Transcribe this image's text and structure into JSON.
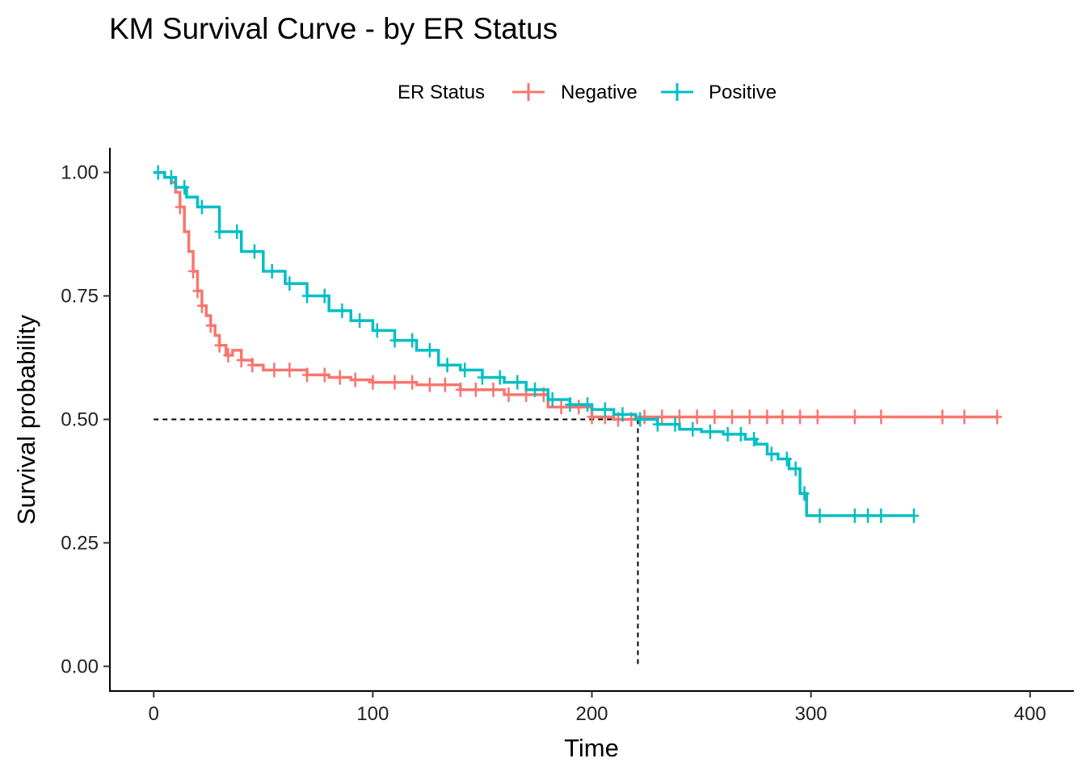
{
  "chart_data": {
    "type": "line",
    "subtype": "kaplan-meier step curve with censor marks",
    "title": "KM Survival Curve - by ER Status",
    "xlabel": "Time",
    "ylabel": "Survival probability",
    "xlim": [
      -20,
      420
    ],
    "ylim": [
      -0.05,
      1.05
    ],
    "xticks": [
      0,
      100,
      200,
      300,
      400
    ],
    "xtick_labels": [
      "0",
      "100",
      "200",
      "300",
      "400"
    ],
    "yticks": [
      0,
      0.25,
      0.5,
      0.75,
      1.0
    ],
    "ytick_labels": [
      "0.00",
      "0.25",
      "0.50",
      "0.75",
      "1.00"
    ],
    "grid": false,
    "legend": {
      "title": "ER Status",
      "placement": "top",
      "entries": [
        "Negative",
        "Positive"
      ]
    },
    "median_line": {
      "y": 0.5,
      "x": 221
    },
    "series": [
      {
        "name": "Negative",
        "color": "#F8766D",
        "x": [
          0,
          5,
          8,
          10,
          12,
          14,
          16,
          18,
          20,
          22,
          24,
          26,
          28,
          30,
          33,
          36,
          40,
          45,
          50,
          60,
          70,
          80,
          90,
          100,
          120,
          140,
          160,
          180,
          200,
          210,
          220,
          240,
          300,
          385
        ],
        "y": [
          1.0,
          0.99,
          0.98,
          0.96,
          0.93,
          0.88,
          0.84,
          0.8,
          0.76,
          0.73,
          0.71,
          0.69,
          0.67,
          0.65,
          0.63,
          0.64,
          0.62,
          0.61,
          0.6,
          0.6,
          0.59,
          0.585,
          0.58,
          0.575,
          0.57,
          0.56,
          0.55,
          0.525,
          0.505,
          0.5,
          0.505,
          0.505,
          0.505,
          0.505
        ],
        "censor_x": [
          12,
          18,
          20,
          22,
          26,
          30,
          34,
          40,
          45,
          55,
          62,
          70,
          78,
          85,
          92,
          100,
          110,
          118,
          126,
          133,
          140,
          147,
          155,
          162,
          170,
          178,
          186,
          194,
          200,
          206,
          212,
          218,
          224,
          232,
          240,
          248,
          256,
          264,
          272,
          280,
          287,
          295,
          303,
          320,
          332,
          360,
          370,
          385
        ]
      },
      {
        "name": "Positive",
        "color": "#00BFC4",
        "x": [
          0,
          5,
          10,
          15,
          20,
          30,
          40,
          50,
          60,
          70,
          80,
          90,
          100,
          110,
          120,
          130,
          140,
          150,
          160,
          170,
          180,
          190,
          200,
          210,
          220,
          230,
          240,
          250,
          260,
          270,
          275,
          280,
          285,
          290,
          295,
          298,
          305,
          347
        ],
        "y": [
          1.0,
          0.99,
          0.97,
          0.95,
          0.93,
          0.88,
          0.84,
          0.8,
          0.775,
          0.75,
          0.72,
          0.7,
          0.68,
          0.66,
          0.64,
          0.61,
          0.6,
          0.585,
          0.575,
          0.56,
          0.54,
          0.53,
          0.52,
          0.51,
          0.5,
          0.49,
          0.48,
          0.475,
          0.47,
          0.46,
          0.45,
          0.43,
          0.42,
          0.4,
          0.35,
          0.305,
          0.305,
          0.305
        ],
        "censor_x": [
          2,
          8,
          14,
          22,
          30,
          38,
          46,
          54,
          62,
          70,
          78,
          86,
          94,
          102,
          110,
          118,
          126,
          134,
          142,
          150,
          158,
          166,
          174,
          182,
          190,
          198,
          206,
          214,
          222,
          230,
          238,
          246,
          254,
          262,
          268,
          274,
          282,
          289,
          293,
          297,
          304,
          320,
          326,
          332,
          347
        ]
      }
    ]
  }
}
